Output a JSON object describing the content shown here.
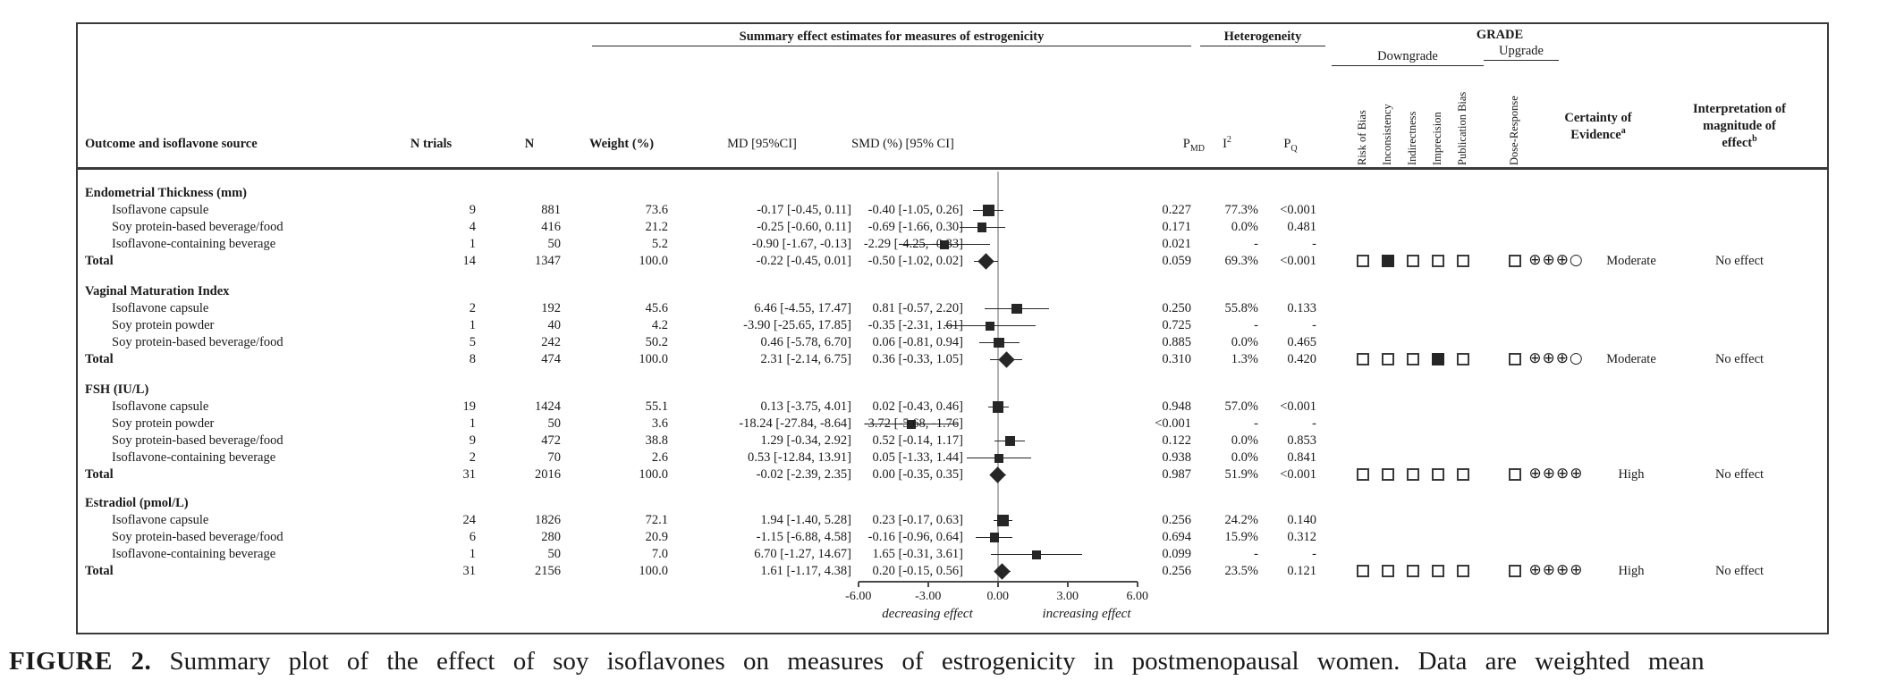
{
  "figure": {
    "caption_label": "FIGURE 2.",
    "caption_text": "Summary plot of the effect of soy isoflavones on measures of estrogenicity in postmenopausal women. Data are weighted mean"
  },
  "header": {
    "summary_span": "Summary effect estimates for measures of estrogenicity",
    "heterogeneity_span": "Heterogeneity",
    "grade_span": "GRADE",
    "downgrade_span": "Downgrade",
    "upgrade_span": "Upgrade",
    "outcome_col": "Outcome and isoflavone source",
    "n_trials_col": "N trials",
    "n_col": "N",
    "weight_col": "Weight (%)",
    "md_col": "MD [95%CI]",
    "smd_col": "SMD (%) [95% CI]",
    "p_label": "P",
    "pmd_sub": "MD",
    "i_label": "I",
    "i_sup": "2",
    "pq_sub": "Q",
    "downgrade_items": [
      "Risk of Bias",
      "Inconsistency",
      "Indirectness",
      "Imprecision",
      "Publication Bias"
    ],
    "upgrade_items": [
      "Dose-Response"
    ],
    "certainty_line1": "Certainty of",
    "certainty_line2": "Evidence",
    "certainty_sup": "a",
    "interp_line1": "Interpretation of",
    "interp_line2": "magnitude of",
    "interp_line3": "effect",
    "interp_sup": "b"
  },
  "axis": {
    "tick_labels": [
      "-6.00",
      "-3.00",
      "0.00",
      "3.00",
      "6.00"
    ],
    "tick_values": [
      -6,
      -3,
      0,
      3,
      6
    ],
    "min": -6,
    "max": 6,
    "left_label": "decreasing effect",
    "right_label": "increasing effect"
  },
  "sections": [
    {
      "title": "Endometrial Thickness (mm)",
      "rows": [
        {
          "type": "source",
          "label": "Isoflavone capsule",
          "n_trials": "9",
          "n": "881",
          "weight": "73.6",
          "md": "-0.17 [-0.45, 0.11]",
          "smd": "-0.40 [-1.05, 0.26]",
          "smd_est": -0.4,
          "smd_lo": -1.05,
          "smd_hi": 0.26,
          "pmd": "0.227",
          "i2": "77.3%",
          "pq": "<0.001"
        },
        {
          "type": "source",
          "label": "Soy protein-based beverage/food",
          "n_trials": "4",
          "n": "416",
          "weight": "21.2",
          "md": "-0.25 [-0.60, 0.11]",
          "smd": "-0.69 [-1.66, 0.30]",
          "smd_est": -0.69,
          "smd_lo": -1.66,
          "smd_hi": 0.3,
          "pmd": "0.171",
          "i2": "0.0%",
          "pq": "0.481"
        },
        {
          "type": "source",
          "label": "Isoflavone-containing beverage",
          "n_trials": "1",
          "n": "50",
          "weight": "5.2",
          "md": "-0.90 [-1.67, -0.13]",
          "smd": "-2.29 [-4.25, -0.33]",
          "smd_est": -2.29,
          "smd_lo": -4.25,
          "smd_hi": -0.33,
          "pmd": "0.021",
          "i2": "-",
          "pq": "-"
        },
        {
          "type": "total",
          "label": "Total",
          "n_trials": "14",
          "n": "1347",
          "weight": "100.0",
          "md": "-0.22 [-0.45, 0.01]",
          "smd": "-0.50 [-1.02, 0.02]",
          "smd_est": -0.5,
          "smd_lo": -1.02,
          "smd_hi": 0.02,
          "pmd": "0.059",
          "i2": "69.3%",
          "pq": "<0.001"
        }
      ],
      "grade": {
        "downgrade": [
          false,
          true,
          false,
          false,
          false
        ],
        "upgrade": [
          false
        ],
        "certainty_symbols": "⊕⊕⊕○",
        "certainty_rating": "Moderate",
        "interpretation": "No effect"
      }
    },
    {
      "title": "Vaginal Maturation Index",
      "rows": [
        {
          "type": "source",
          "label": "Isoflavone capsule",
          "n_trials": "2",
          "n": "192",
          "weight": "45.6",
          "md": "6.46 [-4.55, 17.47]",
          "smd": "0.81 [-0.57, 2.20]",
          "smd_est": 0.81,
          "smd_lo": -0.57,
          "smd_hi": 2.2,
          "pmd": "0.250",
          "i2": "55.8%",
          "pq": "0.133"
        },
        {
          "type": "source",
          "label": "Soy protein powder",
          "n_trials": "1",
          "n": "40",
          "weight": "4.2",
          "md": "-3.90 [-25.65, 17.85]",
          "smd": "-0.35 [-2.31, 1.61]",
          "smd_est": -0.35,
          "smd_lo": -2.31,
          "smd_hi": 1.61,
          "pmd": "0.725",
          "i2": "-",
          "pq": "-"
        },
        {
          "type": "source",
          "label": "Soy protein-based beverage/food",
          "n_trials": "5",
          "n": "242",
          "weight": "50.2",
          "md": "0.46 [-5.78, 6.70]",
          "smd": "0.06 [-0.81, 0.94]",
          "smd_est": 0.06,
          "smd_lo": -0.81,
          "smd_hi": 0.94,
          "pmd": "0.885",
          "i2": "0.0%",
          "pq": "0.465"
        },
        {
          "type": "total",
          "label": "Total",
          "n_trials": "8",
          "n": "474",
          "weight": "100.0",
          "md": "2.31 [-2.14, 6.75]",
          "smd": "0.36 [-0.33, 1.05]",
          "smd_est": 0.36,
          "smd_lo": -0.33,
          "smd_hi": 1.05,
          "pmd": "0.310",
          "i2": "1.3%",
          "pq": "0.420"
        }
      ],
      "grade": {
        "downgrade": [
          false,
          false,
          false,
          true,
          false
        ],
        "upgrade": [
          false
        ],
        "certainty_symbols": "⊕⊕⊕○",
        "certainty_rating": "Moderate",
        "interpretation": "No effect"
      }
    },
    {
      "title": "FSH (IU/L)",
      "rows": [
        {
          "type": "source",
          "label": "Isoflavone capsule",
          "n_trials": "19",
          "n": "1424",
          "weight": "55.1",
          "md": "0.13 [-3.75, 4.01]",
          "smd": "0.02 [-0.43, 0.46]",
          "smd_est": 0.02,
          "smd_lo": -0.43,
          "smd_hi": 0.46,
          "pmd": "0.948",
          "i2": "57.0%",
          "pq": "<0.001"
        },
        {
          "type": "source",
          "label": "Soy protein powder",
          "n_trials": "1",
          "n": "50",
          "weight": "3.6",
          "md": "-18.24 [-27.84, -8.64]",
          "smd": "-3.72 [-5.68, -1.76]",
          "smd_est": -3.72,
          "smd_lo": -5.68,
          "smd_hi": -1.76,
          "pmd": "<0.001",
          "i2": "-",
          "pq": "-"
        },
        {
          "type": "source",
          "label": "Soy protein-based beverage/food",
          "n_trials": "9",
          "n": "472",
          "weight": "38.8",
          "md": "1.29 [-0.34, 2.92]",
          "smd": "0.52 [-0.14, 1.17]",
          "smd_est": 0.52,
          "smd_lo": -0.14,
          "smd_hi": 1.17,
          "pmd": "0.122",
          "i2": "0.0%",
          "pq": "0.853"
        },
        {
          "type": "source",
          "label": "Isoflavone-containing beverage",
          "n_trials": "2",
          "n": "70",
          "weight": "2.6",
          "md": "0.53 [-12.84, 13.91]",
          "smd": "0.05 [-1.33, 1.44]",
          "smd_est": 0.05,
          "smd_lo": -1.33,
          "smd_hi": 1.44,
          "pmd": "0.938",
          "i2": "0.0%",
          "pq": "0.841"
        },
        {
          "type": "total",
          "label": "Total",
          "n_trials": "31",
          "n": "2016",
          "weight": "100.0",
          "md": "-0.02 [-2.39, 2.35]",
          "smd": "0.00 [-0.35, 0.35]",
          "smd_est": 0.0,
          "smd_lo": -0.35,
          "smd_hi": 0.35,
          "pmd": "0.987",
          "i2": "51.9%",
          "pq": "<0.001"
        }
      ],
      "grade": {
        "downgrade": [
          false,
          false,
          false,
          false,
          false
        ],
        "upgrade": [
          false
        ],
        "certainty_symbols": "⊕⊕⊕⊕",
        "certainty_rating": "High",
        "interpretation": "No effect"
      }
    },
    {
      "title": "Estradiol (pmol/L)",
      "rows": [
        {
          "type": "source",
          "label": "Isoflavone capsule",
          "n_trials": "24",
          "n": "1826",
          "weight": "72.1",
          "md": "1.94 [-1.40, 5.28]",
          "smd": "0.23 [-0.17, 0.63]",
          "smd_est": 0.23,
          "smd_lo": -0.17,
          "smd_hi": 0.63,
          "pmd": "0.256",
          "i2": "24.2%",
          "pq": "0.140"
        },
        {
          "type": "source",
          "label": "Soy protein-based beverage/food",
          "n_trials": "6",
          "n": "280",
          "weight": "20.9",
          "md": "-1.15 [-6.88, 4.58]",
          "smd": "-0.16 [-0.96, 0.64]",
          "smd_est": -0.16,
          "smd_lo": -0.96,
          "smd_hi": 0.64,
          "pmd": "0.694",
          "i2": "15.9%",
          "pq": "0.312"
        },
        {
          "type": "source",
          "label": "Isoflavone-containing beverage",
          "n_trials": "1",
          "n": "50",
          "weight": "7.0",
          "md": "6.70 [-1.27, 14.67]",
          "smd": "1.65 [-0.31, 3.61]",
          "smd_est": 1.65,
          "smd_lo": -0.31,
          "smd_hi": 3.61,
          "pmd": "0.099",
          "i2": "-",
          "pq": "-"
        },
        {
          "type": "total",
          "label": "Total",
          "n_trials": "31",
          "n": "2156",
          "weight": "100.0",
          "md": "1.61 [-1.17, 4.38]",
          "smd": "0.20 [-0.15, 0.56]",
          "smd_est": 0.2,
          "smd_lo": -0.15,
          "smd_hi": 0.56,
          "pmd": "0.256",
          "i2": "23.5%",
          "pq": "0.121"
        }
      ],
      "grade": {
        "downgrade": [
          false,
          false,
          false,
          false,
          false
        ],
        "upgrade": [
          false
        ],
        "certainty_symbols": "⊕⊕⊕⊕",
        "certainty_rating": "High",
        "interpretation": "No effect"
      }
    }
  ],
  "chart_data": {
    "type": "forest",
    "effect_measure": "SMD (%) [95% CI]",
    "x_axis": {
      "range": [
        -6,
        6
      ],
      "ticks": [
        -6,
        -3,
        0,
        3,
        6
      ],
      "tick_labels": [
        "-6.00",
        "-3.00",
        "0.00",
        "3.00",
        "6.00"
      ],
      "zero_line": 0,
      "left_annotation": "decreasing effect",
      "right_annotation": "increasing effect"
    },
    "groups": [
      {
        "outcome": "Endometrial Thickness (mm)",
        "points": [
          {
            "label": "Isoflavone capsule",
            "est": -0.4,
            "lo": -1.05,
            "hi": 0.26,
            "marker": "square"
          },
          {
            "label": "Soy protein-based beverage/food",
            "est": -0.69,
            "lo": -1.66,
            "hi": 0.3,
            "marker": "square"
          },
          {
            "label": "Isoflavone-containing beverage",
            "est": -2.29,
            "lo": -4.25,
            "hi": -0.33,
            "marker": "square"
          },
          {
            "label": "Total",
            "est": -0.5,
            "lo": -1.02,
            "hi": 0.02,
            "marker": "diamond"
          }
        ]
      },
      {
        "outcome": "Vaginal Maturation Index",
        "points": [
          {
            "label": "Isoflavone capsule",
            "est": 0.81,
            "lo": -0.57,
            "hi": 2.2,
            "marker": "square"
          },
          {
            "label": "Soy protein powder",
            "est": -0.35,
            "lo": -2.31,
            "hi": 1.61,
            "marker": "square"
          },
          {
            "label": "Soy protein-based beverage/food",
            "est": 0.06,
            "lo": -0.81,
            "hi": 0.94,
            "marker": "square"
          },
          {
            "label": "Total",
            "est": 0.36,
            "lo": -0.33,
            "hi": 1.05,
            "marker": "diamond"
          }
        ]
      },
      {
        "outcome": "FSH (IU/L)",
        "points": [
          {
            "label": "Isoflavone capsule",
            "est": 0.02,
            "lo": -0.43,
            "hi": 0.46,
            "marker": "square"
          },
          {
            "label": "Soy protein powder",
            "est": -3.72,
            "lo": -5.68,
            "hi": -1.76,
            "marker": "square"
          },
          {
            "label": "Soy protein-based beverage/food",
            "est": 0.52,
            "lo": -0.14,
            "hi": 1.17,
            "marker": "square"
          },
          {
            "label": "Isoflavone-containing beverage",
            "est": 0.05,
            "lo": -1.33,
            "hi": 1.44,
            "marker": "square"
          },
          {
            "label": "Total",
            "est": 0.0,
            "lo": -0.35,
            "hi": 0.35,
            "marker": "diamond"
          }
        ]
      },
      {
        "outcome": "Estradiol (pmol/L)",
        "points": [
          {
            "label": "Isoflavone capsule",
            "est": 0.23,
            "lo": -0.17,
            "hi": 0.63,
            "marker": "square"
          },
          {
            "label": "Soy protein-based beverage/food",
            "est": -0.16,
            "lo": -0.96,
            "hi": 0.64,
            "marker": "square"
          },
          {
            "label": "Isoflavone-containing beverage",
            "est": 1.65,
            "lo": -0.31,
            "hi": 3.61,
            "marker": "square"
          },
          {
            "label": "Total",
            "est": 0.2,
            "lo": -0.15,
            "hi": 0.56,
            "marker": "diamond"
          }
        ]
      }
    ]
  }
}
